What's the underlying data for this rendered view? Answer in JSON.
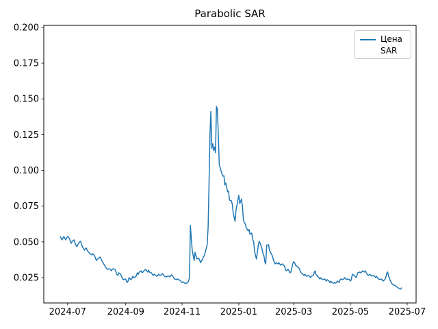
{
  "figure_title": "Parabolic SAR",
  "legend": {
    "items": [
      {
        "label": "Цена",
        "handle": "line",
        "color": "#1f77b4"
      },
      {
        "label": "SAR",
        "handle": "none",
        "color": "transparent"
      }
    ]
  },
  "chart_data": {
    "type": "line",
    "title": "Parabolic SAR",
    "grid": false,
    "legend_position": "upper right",
    "x_start_date": "2024-06-23",
    "xlim_days": [
      -17.6,
      382.6
    ],
    "ylim": [
      0.0073,
      0.2014
    ],
    "x_ticks": {
      "days": [
        8,
        70.5,
        131,
        192,
        251,
        312,
        373
      ],
      "labels": [
        "2024-07",
        "2024-09",
        "2024-11",
        "2025-01",
        "2025-03",
        "2025-05",
        "2025-07"
      ]
    },
    "y_ticks": {
      "values": [
        0.025,
        0.05,
        0.075,
        0.1,
        0.125,
        0.15,
        0.175,
        0.2
      ],
      "labels": [
        "0.025",
        "0.050",
        "0.075",
        "0.100",
        "0.125",
        "0.150",
        "0.175",
        "0.200"
      ]
    },
    "axis_color": "#000000",
    "series": [
      {
        "name": "Цена",
        "color": "#1f77b4",
        "line_width": 1.5,
        "points_format": "[days_since_2024-06-23, price]",
        "points": [
          [
            0,
            0.0538
          ],
          [
            2,
            0.0514
          ],
          [
            4,
            0.0538
          ],
          [
            5,
            0.0524
          ],
          [
            6,
            0.0514
          ],
          [
            7,
            0.0529
          ],
          [
            8,
            0.0538
          ],
          [
            10,
            0.0524
          ],
          [
            11,
            0.05
          ],
          [
            12,
            0.049
          ],
          [
            13,
            0.0505
          ],
          [
            15,
            0.0514
          ],
          [
            16,
            0.049
          ],
          [
            17,
            0.0476
          ],
          [
            18,
            0.0466
          ],
          [
            19,
            0.0481
          ],
          [
            21,
            0.05
          ],
          [
            22,
            0.0505
          ],
          [
            23,
            0.0481
          ],
          [
            24,
            0.0466
          ],
          [
            26,
            0.0442
          ],
          [
            27,
            0.0452
          ],
          [
            28,
            0.0457
          ],
          [
            29,
            0.0442
          ],
          [
            30,
            0.0433
          ],
          [
            32,
            0.0418
          ],
          [
            34,
            0.0409
          ],
          [
            35,
            0.0418
          ],
          [
            37,
            0.0404
          ],
          [
            38,
            0.0385
          ],
          [
            39,
            0.037
          ],
          [
            40,
            0.0379
          ],
          [
            41,
            0.0385
          ],
          [
            43,
            0.0394
          ],
          [
            44,
            0.0379
          ],
          [
            46,
            0.0355
          ],
          [
            48,
            0.0332
          ],
          [
            50,
            0.0312
          ],
          [
            51,
            0.0308
          ],
          [
            52,
            0.0312
          ],
          [
            54,
            0.0308
          ],
          [
            55,
            0.0298
          ],
          [
            56,
            0.0308
          ],
          [
            57,
            0.0312
          ],
          [
            59,
            0.0308
          ],
          [
            60,
            0.0289
          ],
          [
            61,
            0.0274
          ],
          [
            62,
            0.0265
          ],
          [
            63,
            0.0284
          ],
          [
            65,
            0.0274
          ],
          [
            66,
            0.026
          ],
          [
            67,
            0.0241
          ],
          [
            68,
            0.0236
          ],
          [
            70,
            0.0241
          ],
          [
            71,
            0.0231
          ],
          [
            72,
            0.0216
          ],
          [
            73,
            0.0226
          ],
          [
            74,
            0.025
          ],
          [
            76,
            0.0236
          ],
          [
            77,
            0.0241
          ],
          [
            78,
            0.026
          ],
          [
            79,
            0.025
          ],
          [
            81,
            0.0255
          ],
          [
            82,
            0.0265
          ],
          [
            83,
            0.0284
          ],
          [
            84,
            0.0274
          ],
          [
            85,
            0.0289
          ],
          [
            87,
            0.0298
          ],
          [
            88,
            0.0284
          ],
          [
            89,
            0.0289
          ],
          [
            90,
            0.0298
          ],
          [
            92,
            0.0308
          ],
          [
            93,
            0.0298
          ],
          [
            94,
            0.0289
          ],
          [
            95,
            0.0303
          ],
          [
            96,
            0.0289
          ],
          [
            98,
            0.0284
          ],
          [
            99,
            0.0274
          ],
          [
            100,
            0.0265
          ],
          [
            101,
            0.0274
          ],
          [
            103,
            0.0265
          ],
          [
            104,
            0.026
          ],
          [
            105,
            0.0265
          ],
          [
            106,
            0.0274
          ],
          [
            107,
            0.0265
          ],
          [
            109,
            0.027
          ],
          [
            110,
            0.0279
          ],
          [
            111,
            0.027
          ],
          [
            112,
            0.026
          ],
          [
            114,
            0.0255
          ],
          [
            115,
            0.026
          ],
          [
            117,
            0.026
          ],
          [
            118,
            0.0255
          ],
          [
            119,
            0.0265
          ],
          [
            120,
            0.027
          ],
          [
            121,
            0.026
          ],
          [
            122,
            0.025
          ],
          [
            123,
            0.0241
          ],
          [
            125,
            0.0236
          ],
          [
            126,
            0.0241
          ],
          [
            127,
            0.0236
          ],
          [
            129,
            0.0231
          ],
          [
            130,
            0.0221
          ],
          [
            131,
            0.0216
          ],
          [
            132,
            0.0221
          ],
          [
            133,
            0.0216
          ],
          [
            134,
            0.0211
          ],
          [
            136,
            0.0211
          ],
          [
            137,
            0.0216
          ],
          [
            138,
            0.0226
          ],
          [
            139,
            0.025
          ],
          [
            140,
            0.0615
          ],
          [
            141,
            0.052
          ],
          [
            142,
            0.044
          ],
          [
            143,
            0.0404
          ],
          [
            144,
            0.037
          ],
          [
            145,
            0.0427
          ],
          [
            147,
            0.038
          ],
          [
            148,
            0.0385
          ],
          [
            149,
            0.0385
          ],
          [
            151,
            0.0355
          ],
          [
            153,
            0.038
          ],
          [
            154,
            0.0395
          ],
          [
            155,
            0.0403
          ],
          [
            156,
            0.043
          ],
          [
            158,
            0.048
          ],
          [
            159,
            0.06
          ],
          [
            160,
            0.09
          ],
          [
            161,
            0.125
          ],
          [
            162,
            0.1412
          ],
          [
            163,
            0.1153
          ],
          [
            164,
            0.1187
          ],
          [
            165,
            0.1139
          ],
          [
            166,
            0.1163
          ],
          [
            167,
            0.1124
          ],
          [
            168,
            0.1446
          ],
          [
            169,
            0.143
          ],
          [
            170,
            0.125
          ],
          [
            171,
            0.104
          ],
          [
            173,
            0.0995
          ],
          [
            174,
            0.0975
          ],
          [
            175,
            0.096
          ],
          [
            176,
            0.0962
          ],
          [
            177,
            0.0898
          ],
          [
            178,
            0.0912
          ],
          [
            180,
            0.085
          ],
          [
            181,
            0.0855
          ],
          [
            182,
            0.0792
          ],
          [
            184,
            0.0788
          ],
          [
            185,
            0.0764
          ],
          [
            186,
            0.07
          ],
          [
            188,
            0.0644
          ],
          [
            189,
            0.072
          ],
          [
            192,
            0.0826
          ],
          [
            193,
            0.0768
          ],
          [
            195,
            0.08
          ],
          [
            196,
            0.074
          ],
          [
            197,
            0.065
          ],
          [
            198,
            0.0634
          ],
          [
            199,
            0.0625
          ],
          [
            200,
            0.06
          ],
          [
            202,
            0.0577
          ],
          [
            203,
            0.0587
          ],
          [
            204,
            0.0553
          ],
          [
            206,
            0.0562
          ],
          [
            207,
            0.0514
          ],
          [
            208,
            0.05
          ],
          [
            209,
            0.0433
          ],
          [
            210,
            0.0404
          ],
          [
            211,
            0.038
          ],
          [
            213,
            0.048
          ],
          [
            214,
            0.0504
          ],
          [
            215,
            0.049
          ],
          [
            217,
            0.045
          ],
          [
            218,
            0.0418
          ],
          [
            219,
            0.0404
          ],
          [
            220,
            0.0361
          ],
          [
            221,
            0.0346
          ],
          [
            222,
            0.0476
          ],
          [
            224,
            0.0481
          ],
          [
            225,
            0.0442
          ],
          [
            226,
            0.0428
          ],
          [
            228,
            0.0404
          ],
          [
            229,
            0.038
          ],
          [
            230,
            0.0361
          ],
          [
            231,
            0.0346
          ],
          [
            232,
            0.0355
          ],
          [
            234,
            0.0346
          ],
          [
            235,
            0.0355
          ],
          [
            236,
            0.0346
          ],
          [
            237,
            0.0337
          ],
          [
            239,
            0.0346
          ],
          [
            240,
            0.0337
          ],
          [
            241,
            0.0332
          ],
          [
            242,
            0.0313
          ],
          [
            243,
            0.0298
          ],
          [
            245,
            0.0308
          ],
          [
            246,
            0.0298
          ],
          [
            247,
            0.0284
          ],
          [
            248,
            0.0289
          ],
          [
            250,
            0.0346
          ],
          [
            251,
            0.0361
          ],
          [
            252,
            0.0355
          ],
          [
            253,
            0.0337
          ],
          [
            254,
            0.0332
          ],
          [
            256,
            0.0322
          ],
          [
            257,
            0.0313
          ],
          [
            258,
            0.0298
          ],
          [
            259,
            0.0284
          ],
          [
            261,
            0.0274
          ],
          [
            262,
            0.0265
          ],
          [
            263,
            0.0274
          ],
          [
            264,
            0.0265
          ],
          [
            265,
            0.026
          ],
          [
            267,
            0.0265
          ],
          [
            268,
            0.026
          ],
          [
            269,
            0.025
          ],
          [
            270,
            0.026
          ],
          [
            272,
            0.0265
          ],
          [
            273,
            0.0284
          ],
          [
            274,
            0.0298
          ],
          [
            275,
            0.0274
          ],
          [
            276,
            0.0265
          ],
          [
            278,
            0.025
          ],
          [
            279,
            0.0241
          ],
          [
            280,
            0.025
          ],
          [
            281,
            0.0241
          ],
          [
            283,
            0.0236
          ],
          [
            284,
            0.0241
          ],
          [
            285,
            0.0236
          ],
          [
            286,
            0.0226
          ],
          [
            287,
            0.0236
          ],
          [
            289,
            0.0226
          ],
          [
            290,
            0.0216
          ],
          [
            291,
            0.0226
          ],
          [
            292,
            0.0216
          ],
          [
            294,
            0.0211
          ],
          [
            295,
            0.0216
          ],
          [
            296,
            0.0211
          ],
          [
            297,
            0.0216
          ],
          [
            298,
            0.0226
          ],
          [
            300,
            0.0216
          ],
          [
            301,
            0.0236
          ],
          [
            302,
            0.0241
          ],
          [
            303,
            0.0236
          ],
          [
            305,
            0.0241
          ],
          [
            306,
            0.025
          ],
          [
            307,
            0.0241
          ],
          [
            308,
            0.0236
          ],
          [
            309,
            0.0241
          ],
          [
            311,
            0.0236
          ],
          [
            312,
            0.0226
          ],
          [
            313,
            0.0236
          ],
          [
            314,
            0.0274
          ],
          [
            316,
            0.0265
          ],
          [
            317,
            0.026
          ],
          [
            318,
            0.025
          ],
          [
            319,
            0.0265
          ],
          [
            320,
            0.0284
          ],
          [
            322,
            0.0289
          ],
          [
            323,
            0.0284
          ],
          [
            324,
            0.0289
          ],
          [
            325,
            0.0298
          ],
          [
            327,
            0.0289
          ],
          [
            328,
            0.0298
          ],
          [
            329,
            0.0284
          ],
          [
            330,
            0.0274
          ],
          [
            331,
            0.0265
          ],
          [
            333,
            0.0274
          ],
          [
            334,
            0.0265
          ],
          [
            335,
            0.026
          ],
          [
            336,
            0.0265
          ],
          [
            338,
            0.026
          ],
          [
            339,
            0.025
          ],
          [
            340,
            0.026
          ],
          [
            341,
            0.025
          ],
          [
            342,
            0.0241
          ],
          [
            344,
            0.0236
          ],
          [
            345,
            0.0241
          ],
          [
            346,
            0.0236
          ],
          [
            347,
            0.0226
          ],
          [
            349,
            0.0236
          ],
          [
            350,
            0.025
          ],
          [
            351,
            0.028
          ],
          [
            352,
            0.029
          ],
          [
            353,
            0.026
          ],
          [
            354,
            0.0245
          ],
          [
            355,
            0.0225
          ],
          [
            356,
            0.0215
          ],
          [
            357,
            0.0205
          ],
          [
            358,
            0.02
          ],
          [
            360,
            0.0195
          ],
          [
            361,
            0.019
          ],
          [
            362,
            0.0185
          ],
          [
            363,
            0.018
          ],
          [
            364,
            0.0175
          ],
          [
            366,
            0.017
          ],
          [
            367,
            0.0178
          ]
        ]
      },
      {
        "name": "SAR",
        "color": "none",
        "points": []
      }
    ]
  }
}
